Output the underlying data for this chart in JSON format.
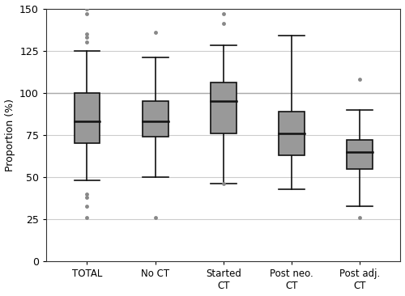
{
  "categories": [
    "TOTAL",
    "No CT",
    "Started\nCT",
    "Post neo.\nCT",
    "Post adj.\nCT"
  ],
  "boxes": [
    {
      "q1": 70,
      "median": 83,
      "q3": 100,
      "whisker_low": 48,
      "whisker_high": 125,
      "outliers_low": [
        26,
        33,
        38,
        40
      ],
      "outliers_high": [
        130,
        133,
        135,
        147,
        150
      ]
    },
    {
      "q1": 74,
      "median": 83,
      "q3": 95,
      "whisker_low": 50,
      "whisker_high": 121,
      "outliers_low": [
        26
      ],
      "outliers_high": [
        136
      ]
    },
    {
      "q1": 76,
      "median": 95,
      "q3": 106,
      "whisker_low": 46,
      "whisker_high": 128,
      "outliers_low": [
        46
      ],
      "outliers_high": [
        141,
        147
      ]
    },
    {
      "q1": 63,
      "median": 76,
      "q3": 89,
      "whisker_low": 43,
      "whisker_high": 134,
      "outliers_low": [],
      "outliers_high": []
    },
    {
      "q1": 55,
      "median": 65,
      "q3": 72,
      "whisker_low": 33,
      "whisker_high": 90,
      "outliers_low": [
        26
      ],
      "outliers_high": [
        108
      ]
    }
  ],
  "ylim": [
    0,
    150
  ],
  "yticks": [
    0,
    25,
    50,
    75,
    100,
    125,
    150
  ],
  "ylabel": "Proportion (%)",
  "box_color": "#999999",
  "box_edgecolor": "#111111",
  "median_color": "#111111",
  "whisker_color": "#111111",
  "cap_color": "#111111",
  "outlier_color": "#888888",
  "reference_line_y": 100,
  "reference_line_color": "#aaaaaa",
  "background_color": "#ffffff",
  "grid_color": "#cccccc",
  "box_width": 0.38,
  "linewidth": 1.2,
  "median_linewidth": 1.8,
  "figwidth": 5.0,
  "figheight": 3.66,
  "dpi": 100
}
